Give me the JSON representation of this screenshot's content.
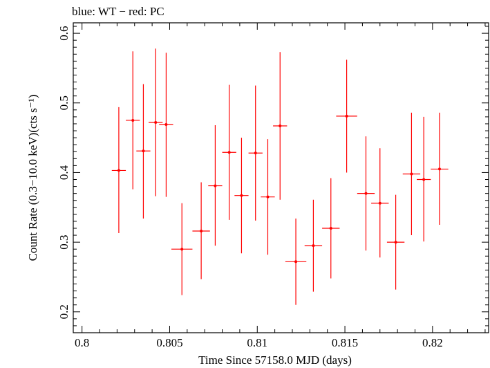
{
  "chart_data": {
    "type": "scatter",
    "title": "blue: WT − red: PC",
    "xlabel": "Time Since 57158.0 MJD (days)",
    "ylabel": "Count Rate (0.3−10.0 keV)(cts s⁻¹)",
    "xlim": [
      0.7995,
      0.8232
    ],
    "ylim": [
      0.17,
      0.615
    ],
    "xticks": [
      0.8,
      0.805,
      0.81,
      0.815,
      0.82
    ],
    "xtick_labels": [
      "0.8",
      "0.805",
      "0.81",
      "0.815",
      "0.82"
    ],
    "yticks": [
      0.2,
      0.3,
      0.4,
      0.5,
      0.6
    ],
    "ytick_labels": [
      "0.2",
      "0.3",
      "0.4",
      "0.5",
      "0.6"
    ],
    "grid": false,
    "legend": "none",
    "series": [
      {
        "color": "#ff0000",
        "points": [
          {
            "x": 0.8021,
            "y": 0.403,
            "xerr": 0.0004,
            "yerr_lo": 0.09,
            "yerr_hi": 0.091
          },
          {
            "x": 0.8029,
            "y": 0.475,
            "xerr": 0.0004,
            "yerr_lo": 0.099,
            "yerr_hi": 0.099
          },
          {
            "x": 0.8035,
            "y": 0.431,
            "xerr": 0.0004,
            "yerr_lo": 0.097,
            "yerr_hi": 0.096
          },
          {
            "x": 0.8042,
            "y": 0.472,
            "xerr": 0.0004,
            "yerr_lo": 0.106,
            "yerr_hi": 0.106
          },
          {
            "x": 0.8048,
            "y": 0.469,
            "xerr": 0.0004,
            "yerr_lo": 0.104,
            "yerr_hi": 0.103
          },
          {
            "x": 0.8057,
            "y": 0.29,
            "xerr": 0.0006,
            "yerr_lo": 0.066,
            "yerr_hi": 0.066
          },
          {
            "x": 0.8068,
            "y": 0.316,
            "xerr": 0.0005,
            "yerr_lo": 0.069,
            "yerr_hi": 0.07
          },
          {
            "x": 0.8076,
            "y": 0.381,
            "xerr": 0.0004,
            "yerr_lo": 0.086,
            "yerr_hi": 0.087
          },
          {
            "x": 0.8084,
            "y": 0.429,
            "xerr": 0.0004,
            "yerr_lo": 0.097,
            "yerr_hi": 0.097
          },
          {
            "x": 0.8091,
            "y": 0.367,
            "xerr": 0.0004,
            "yerr_lo": 0.083,
            "yerr_hi": 0.083
          },
          {
            "x": 0.8099,
            "y": 0.428,
            "xerr": 0.0004,
            "yerr_lo": 0.097,
            "yerr_hi": 0.097
          },
          {
            "x": 0.8106,
            "y": 0.365,
            "xerr": 0.0004,
            "yerr_lo": 0.083,
            "yerr_hi": 0.083
          },
          {
            "x": 0.8113,
            "y": 0.467,
            "xerr": 0.0004,
            "yerr_lo": 0.106,
            "yerr_hi": 0.106
          },
          {
            "x": 0.8122,
            "y": 0.272,
            "xerr": 0.0006,
            "yerr_lo": 0.062,
            "yerr_hi": 0.062
          },
          {
            "x": 0.8132,
            "y": 0.295,
            "xerr": 0.0005,
            "yerr_lo": 0.066,
            "yerr_hi": 0.066
          },
          {
            "x": 0.8142,
            "y": 0.32,
            "xerr": 0.0005,
            "yerr_lo": 0.072,
            "yerr_hi": 0.072
          },
          {
            "x": 0.8151,
            "y": 0.481,
            "xerr": 0.0006,
            "yerr_lo": 0.081,
            "yerr_hi": 0.081
          },
          {
            "x": 0.8162,
            "y": 0.37,
            "xerr": 0.0005,
            "yerr_lo": 0.082,
            "yerr_hi": 0.082
          },
          {
            "x": 0.817,
            "y": 0.356,
            "xerr": 0.0005,
            "yerr_lo": 0.078,
            "yerr_hi": 0.079
          },
          {
            "x": 0.8179,
            "y": 0.3,
            "xerr": 0.0005,
            "yerr_lo": 0.068,
            "yerr_hi": 0.068
          },
          {
            "x": 0.8188,
            "y": 0.398,
            "xerr": 0.0005,
            "yerr_lo": 0.088,
            "yerr_hi": 0.088
          },
          {
            "x": 0.8195,
            "y": 0.39,
            "xerr": 0.0004,
            "yerr_lo": 0.089,
            "yerr_hi": 0.09
          },
          {
            "x": 0.8204,
            "y": 0.405,
            "xerr": 0.0005,
            "yerr_lo": 0.08,
            "yerr_hi": 0.081
          }
        ]
      }
    ]
  }
}
